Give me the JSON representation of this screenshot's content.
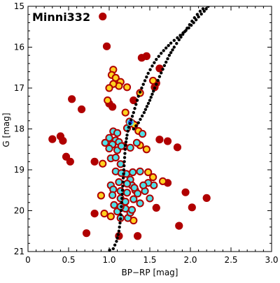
{
  "chart_data": {
    "type": "scatter",
    "title": "Minni332",
    "xlabel": "BP−RP [mag]",
    "ylabel": "G [mag]",
    "xlim": [
      0.0,
      3.0
    ],
    "ylim": [
      21,
      15
    ],
    "y_inverted": true,
    "xticks": [
      "0",
      "0.5",
      "1.0",
      "1.5",
      "2.0",
      "2.5",
      "3.0"
    ],
    "yticks": [
      "15",
      "16",
      "17",
      "18",
      "19",
      "20",
      "21"
    ],
    "grid": false,
    "colors": {
      "low_density": "#b00000",
      "medium_density": "#ffd21f",
      "high_density": "#4fe0e8",
      "peak_density": "#2040ff",
      "isochrone": "#000000"
    },
    "series": [
      {
        "kind": "members",
        "points": [
          [
            0.92,
            15.25
          ],
          [
            0.97,
            15.98
          ],
          [
            1.05,
            16.55
          ],
          [
            1.03,
            16.68
          ],
          [
            1.08,
            16.75
          ],
          [
            1.05,
            16.9
          ],
          [
            1.0,
            17.0
          ],
          [
            1.14,
            16.85
          ],
          [
            1.12,
            16.95
          ],
          [
            1.22,
            16.98
          ],
          [
            1.4,
            16.26
          ],
          [
            1.46,
            16.22
          ],
          [
            1.62,
            16.52
          ],
          [
            1.54,
            16.82
          ],
          [
            1.58,
            16.88
          ],
          [
            1.56,
            16.98
          ],
          [
            1.38,
            17.12
          ],
          [
            1.3,
            17.3
          ],
          [
            0.98,
            17.3
          ],
          [
            1.0,
            17.38
          ],
          [
            1.04,
            17.46
          ],
          [
            0.54,
            17.27
          ],
          [
            0.66,
            17.52
          ],
          [
            1.2,
            17.6
          ],
          [
            1.25,
            17.82
          ],
          [
            1.28,
            17.86
          ],
          [
            1.31,
            17.9
          ],
          [
            1.22,
            17.98
          ],
          [
            1.36,
            18.05
          ],
          [
            1.41,
            18.12
          ],
          [
            1.05,
            18.06
          ],
          [
            1.1,
            18.1
          ],
          [
            1.0,
            18.22
          ],
          [
            1.08,
            18.28
          ],
          [
            1.12,
            18.32
          ],
          [
            0.95,
            18.34
          ],
          [
            1.04,
            18.38
          ],
          [
            1.15,
            18.42
          ],
          [
            1.0,
            18.48
          ],
          [
            1.1,
            18.52
          ],
          [
            1.18,
            18.42
          ],
          [
            1.26,
            18.46
          ],
          [
            1.34,
            18.34
          ],
          [
            1.38,
            18.4
          ],
          [
            1.46,
            18.5
          ],
          [
            1.62,
            18.26
          ],
          [
            1.72,
            18.3
          ],
          [
            1.84,
            18.45
          ],
          [
            0.3,
            18.25
          ],
          [
            0.4,
            18.18
          ],
          [
            0.43,
            18.29
          ],
          [
            0.47,
            18.68
          ],
          [
            0.52,
            18.8
          ],
          [
            0.82,
            18.8
          ],
          [
            0.92,
            18.85
          ],
          [
            1.02,
            18.72
          ],
          [
            1.08,
            18.7
          ],
          [
            1.14,
            18.86
          ],
          [
            1.08,
            19.04
          ],
          [
            1.15,
            19.08
          ],
          [
            1.21,
            19.1
          ],
          [
            1.29,
            19.06
          ],
          [
            1.38,
            19.04
          ],
          [
            1.48,
            19.06
          ],
          [
            1.54,
            19.18
          ],
          [
            1.66,
            19.28
          ],
          [
            1.72,
            19.32
          ],
          [
            1.02,
            19.38
          ],
          [
            1.12,
            19.3
          ],
          [
            1.22,
            19.34
          ],
          [
            1.28,
            19.38
          ],
          [
            1.32,
            19.5
          ],
          [
            1.42,
            19.38
          ],
          [
            1.48,
            19.32
          ],
          [
            1.55,
            19.38
          ],
          [
            1.26,
            19.24
          ],
          [
            1.05,
            19.48
          ],
          [
            1.14,
            19.52
          ],
          [
            1.22,
            19.56
          ],
          [
            1.31,
            19.44
          ],
          [
            1.35,
            19.58
          ],
          [
            1.44,
            19.52
          ],
          [
            1.94,
            19.55
          ],
          [
            2.2,
            19.69
          ],
          [
            0.9,
            19.63
          ],
          [
            1.04,
            19.62
          ],
          [
            1.14,
            19.7
          ],
          [
            1.2,
            19.78
          ],
          [
            1.3,
            19.72
          ],
          [
            1.38,
            19.82
          ],
          [
            1.5,
            19.7
          ],
          [
            1.06,
            19.86
          ],
          [
            1.14,
            19.9
          ],
          [
            1.2,
            19.95
          ],
          [
            1.28,
            19.98
          ],
          [
            1.1,
            20.02
          ],
          [
            1.26,
            20.05
          ],
          [
            1.58,
            19.93
          ],
          [
            2.02,
            19.92
          ],
          [
            0.82,
            20.07
          ],
          [
            0.94,
            20.07
          ],
          [
            1.02,
            20.14
          ],
          [
            1.14,
            20.18
          ],
          [
            1.23,
            20.18
          ],
          [
            1.3,
            20.24
          ],
          [
            0.72,
            20.55
          ],
          [
            1.12,
            20.62
          ],
          [
            1.86,
            20.37
          ],
          [
            1.35,
            20.62
          ]
        ]
      },
      {
        "kind": "isochrone",
        "points": [
          [
            2.22,
            15.0
          ],
          [
            2.17,
            15.12
          ],
          [
            2.1,
            15.26
          ],
          [
            2.04,
            15.4
          ],
          [
            1.98,
            15.53
          ],
          [
            1.91,
            15.65
          ],
          [
            1.84,
            15.77
          ],
          [
            1.76,
            15.9
          ],
          [
            1.7,
            16.02
          ],
          [
            1.64,
            16.15
          ],
          [
            1.58,
            16.3
          ],
          [
            1.53,
            16.46
          ],
          [
            1.48,
            16.64
          ],
          [
            1.44,
            16.82
          ],
          [
            1.4,
            17.0
          ],
          [
            1.36,
            17.2
          ],
          [
            1.33,
            17.4
          ],
          [
            1.3,
            17.6
          ],
          [
            1.27,
            17.78
          ],
          [
            1.24,
            17.96
          ],
          [
            1.22,
            18.15
          ],
          [
            1.2,
            18.4
          ],
          [
            1.19,
            18.7
          ],
          [
            1.18,
            19.0
          ],
          [
            1.17,
            19.3
          ],
          [
            1.16,
            19.6
          ],
          [
            1.15,
            19.9
          ],
          [
            1.14,
            20.2
          ],
          [
            1.12,
            20.5
          ],
          [
            1.09,
            20.75
          ],
          [
            1.05,
            20.93
          ],
          [
            0.96,
            21.0
          ],
          [
            1.3,
            18.0
          ],
          [
            1.36,
            17.85
          ],
          [
            1.43,
            17.6
          ],
          [
            1.5,
            17.3
          ],
          [
            1.56,
            17.0
          ],
          [
            1.62,
            16.72
          ],
          [
            1.68,
            16.45
          ],
          [
            1.74,
            16.2
          ],
          [
            1.8,
            16.0
          ],
          [
            1.86,
            15.82
          ],
          [
            1.93,
            15.62
          ],
          [
            1.99,
            15.45
          ],
          [
            2.05,
            15.28
          ],
          [
            2.12,
            15.12
          ],
          [
            2.19,
            15.0
          ]
        ]
      }
    ]
  }
}
